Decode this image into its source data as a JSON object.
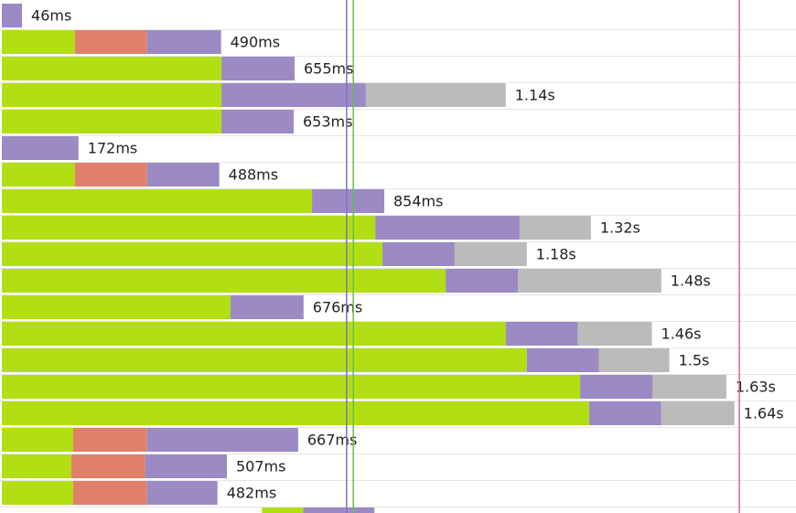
{
  "waterfall": {
    "rows": [
      {
        "label": "46ms",
        "segments": [
          {
            "color": "#9b8ac4",
            "duration": 45
          }
        ]
      },
      {
        "label": "490ms",
        "segments": [
          {
            "color": "#b1df14",
            "duration": 163
          },
          {
            "color": "#e0806a",
            "duration": 161
          },
          {
            "color": "#9b8ac4",
            "duration": 165
          }
        ]
      },
      {
        "label": "655ms",
        "segments": [
          {
            "color": "#b1df14",
            "duration": 490
          },
          {
            "color": "#9b8ac4",
            "duration": 163
          }
        ]
      },
      {
        "label": "1.14s",
        "segments": [
          {
            "color": "#b1df14",
            "duration": 490
          },
          {
            "color": "#9b8ac4",
            "duration": 322
          },
          {
            "color": "#bbbbbb",
            "duration": 312
          }
        ]
      },
      {
        "label": "653ms",
        "segments": [
          {
            "color": "#b1df14",
            "duration": 490
          },
          {
            "color": "#9b8ac4",
            "duration": 161
          }
        ]
      },
      {
        "label": "172ms",
        "segments": [
          {
            "color": "#9b8ac4",
            "duration": 171
          }
        ]
      },
      {
        "label": "488ms",
        "segments": [
          {
            "color": "#b1df14",
            "duration": 163
          },
          {
            "color": "#e0806a",
            "duration": 161
          },
          {
            "color": "#9b8ac4",
            "duration": 161
          }
        ]
      },
      {
        "label": "854ms",
        "segments": [
          {
            "color": "#b1df14",
            "duration": 692
          },
          {
            "color": "#9b8ac4",
            "duration": 161
          }
        ]
      },
      {
        "label": "1.32s",
        "segments": [
          {
            "color": "#b1df14",
            "duration": 833
          },
          {
            "color": "#9b8ac4",
            "duration": 322
          },
          {
            "color": "#bbbbbb",
            "duration": 159
          }
        ]
      },
      {
        "label": "1.18s",
        "segments": [
          {
            "color": "#b1df14",
            "duration": 849
          },
          {
            "color": "#9b8ac4",
            "duration": 161
          },
          {
            "color": "#bbbbbb",
            "duration": 161
          }
        ]
      },
      {
        "label": "1.48s",
        "segments": [
          {
            "color": "#b1df14",
            "duration": 990
          },
          {
            "color": "#9b8ac4",
            "duration": 161
          },
          {
            "color": "#bbbbbb",
            "duration": 320
          }
        ]
      },
      {
        "label": "676ms",
        "segments": [
          {
            "color": "#b1df14",
            "duration": 510
          },
          {
            "color": "#9b8ac4",
            "duration": 163
          }
        ]
      },
      {
        "label": "1.46s",
        "segments": [
          {
            "color": "#b1df14",
            "duration": 1124
          },
          {
            "color": "#9b8ac4",
            "duration": 161
          },
          {
            "color": "#bbbbbb",
            "duration": 165
          }
        ]
      },
      {
        "label": "1.5s",
        "segments": [
          {
            "color": "#b1df14",
            "duration": 1171
          },
          {
            "color": "#9b8ac4",
            "duration": 161
          },
          {
            "color": "#bbbbbb",
            "duration": 157
          }
        ]
      },
      {
        "label": "1.63s",
        "segments": [
          {
            "color": "#b1df14",
            "duration": 1290
          },
          {
            "color": "#9b8ac4",
            "duration": 161
          },
          {
            "color": "#bbbbbb",
            "duration": 165
          }
        ]
      },
      {
        "label": "1.64s",
        "segments": [
          {
            "color": "#b1df14",
            "duration": 1310
          },
          {
            "color": "#9b8ac4",
            "duration": 161
          },
          {
            "color": "#bbbbbb",
            "duration": 163
          }
        ]
      },
      {
        "label": "667ms",
        "segments": [
          {
            "color": "#b1df14",
            "duration": 159
          },
          {
            "color": "#e0806a",
            "duration": 165
          },
          {
            "color": "#9b8ac4",
            "duration": 337
          }
        ]
      },
      {
        "label": "507ms",
        "segments": [
          {
            "color": "#b1df14",
            "duration": 155
          },
          {
            "color": "#e0806a",
            "duration": 165
          },
          {
            "color": "#9b8ac4",
            "duration": 182
          }
        ]
      },
      {
        "label": "482ms",
        "segments": [
          {
            "color": "#b1df14",
            "duration": 159
          },
          {
            "color": "#e0806a",
            "duration": 165
          },
          {
            "color": "#9b8ac4",
            "duration": 157
          }
        ]
      },
      {
        "start": 580,
        "segments": [
          {
            "color": "#b1df14",
            "duration": 92
          },
          {
            "color": "#9b8ac4",
            "duration": 159
          }
        ]
      }
    ],
    "markers": [
      {
        "color": "#7a74c8",
        "time": 769
      },
      {
        "color": "#6cbf4a",
        "time": 784
      },
      {
        "color": "#d0609a",
        "time": 1645
      }
    ]
  }
}
